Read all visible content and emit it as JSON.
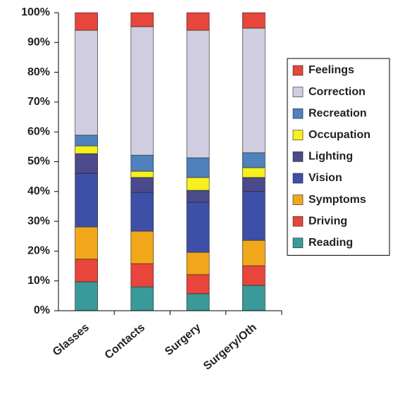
{
  "chart_data": {
    "type": "stacked_bar",
    "categories": [
      "Glasses",
      "Contacts",
      "Surgery",
      "Surgery/Oth"
    ],
    "series": [
      {
        "name": "Reading",
        "color": "#3a9a9a",
        "values": [
          9.7,
          8.0,
          5.7,
          8.5
        ]
      },
      {
        "name": "Driving",
        "color": "#e8453c",
        "values": [
          7.6,
          7.8,
          6.4,
          6.6
        ]
      },
      {
        "name": "Symptoms",
        "color": "#f0a81a",
        "values": [
          10.8,
          10.9,
          7.5,
          8.5
        ]
      },
      {
        "name": "Vision",
        "color": "#3e4fa8",
        "values": [
          18.0,
          13.0,
          16.8,
          16.4
        ]
      },
      {
        "name": "Lighting",
        "color": "#4b4a8a",
        "values": [
          6.6,
          5.0,
          4.0,
          4.7
        ]
      },
      {
        "name": "Occupation",
        "color": "#f5f01e",
        "values": [
          2.6,
          2.1,
          4.3,
          3.3
        ]
      },
      {
        "name": "Recreation",
        "color": "#4f81bd",
        "values": [
          3.6,
          5.4,
          6.6,
          5.0
        ]
      },
      {
        "name": "Correction",
        "color": "#d0cde0",
        "values": [
          35.2,
          43.1,
          42.8,
          41.8
        ]
      },
      {
        "name": "Feelings",
        "color": "#e8453c",
        "values": [
          5.9,
          4.7,
          5.9,
          5.2
        ]
      }
    ],
    "ylim": [
      0,
      100
    ],
    "yticks": [
      {
        "value": 0,
        "label": "0%"
      },
      {
        "value": 10,
        "label": "10%"
      },
      {
        "value": 20,
        "label": "20%"
      },
      {
        "value": 30,
        "label": "30%"
      },
      {
        "value": 40,
        "label": "40%"
      },
      {
        "value": 50,
        "label": "50%"
      },
      {
        "value": 60,
        "label": "60%"
      },
      {
        "value": 70,
        "label": "70%"
      },
      {
        "value": 80,
        "label": "80%"
      },
      {
        "value": 90,
        "label": "90%"
      },
      {
        "value": 100,
        "label": "100%"
      }
    ],
    "grid": false,
    "legend": "right"
  }
}
